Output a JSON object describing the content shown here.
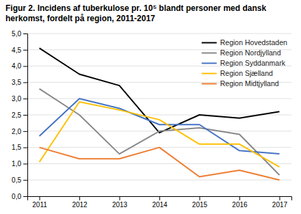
{
  "chart_data": {
    "type": "line",
    "title": "Figur 2. Incidens af tuberkulose pr. 10⁵ blandt personer med dansk\nherkomst, fordelt på region, 2011-2017",
    "x": [
      2011,
      2012,
      2013,
      2014,
      2015,
      2016,
      2017
    ],
    "series": [
      {
        "name": "Region Hovedstaden",
        "color": "#000000",
        "values": [
          4.55,
          3.75,
          3.4,
          1.95,
          2.5,
          2.4,
          2.6
        ]
      },
      {
        "name": "Region Nordjylland",
        "color": "#888888",
        "values": [
          3.3,
          2.5,
          1.3,
          2.0,
          2.1,
          1.9,
          0.65
        ]
      },
      {
        "name": "Region Syddanmark",
        "color": "#4472C4",
        "values": [
          1.85,
          3.0,
          2.7,
          2.2,
          2.2,
          1.4,
          1.3
        ]
      },
      {
        "name": "Region Sjælland",
        "color": "#FFC000",
        "values": [
          1.05,
          2.9,
          2.65,
          2.35,
          1.6,
          1.6,
          0.9
        ]
      },
      {
        "name": "Region Midtjylland",
        "color": "#ED7D31",
        "values": [
          1.5,
          1.15,
          1.15,
          1.5,
          0.6,
          0.8,
          0.5
        ]
      }
    ],
    "xlim": [
      2010.7,
      2017.3
    ],
    "xticks": [
      2011,
      2012,
      2013,
      2014,
      2015,
      2016,
      2017
    ],
    "ylim": [
      0.0,
      5.0
    ],
    "yticks": [
      {
        "value": 0.0,
        "label": "0,0"
      },
      {
        "value": 0.5,
        "label": "0,5"
      },
      {
        "value": 1.0,
        "label": "1,0"
      },
      {
        "value": 1.5,
        "label": "1,5"
      },
      {
        "value": 2.0,
        "label": "2,0"
      },
      {
        "value": 2.5,
        "label": "2,5"
      },
      {
        "value": 3.0,
        "label": "3,0"
      },
      {
        "value": 3.5,
        "label": "3,5"
      },
      {
        "value": 4.0,
        "label": "4,0"
      },
      {
        "value": 4.5,
        "label": "4,5"
      },
      {
        "value": 5.0,
        "label": "5,0"
      }
    ],
    "grid": true,
    "legend": "upper right"
  }
}
